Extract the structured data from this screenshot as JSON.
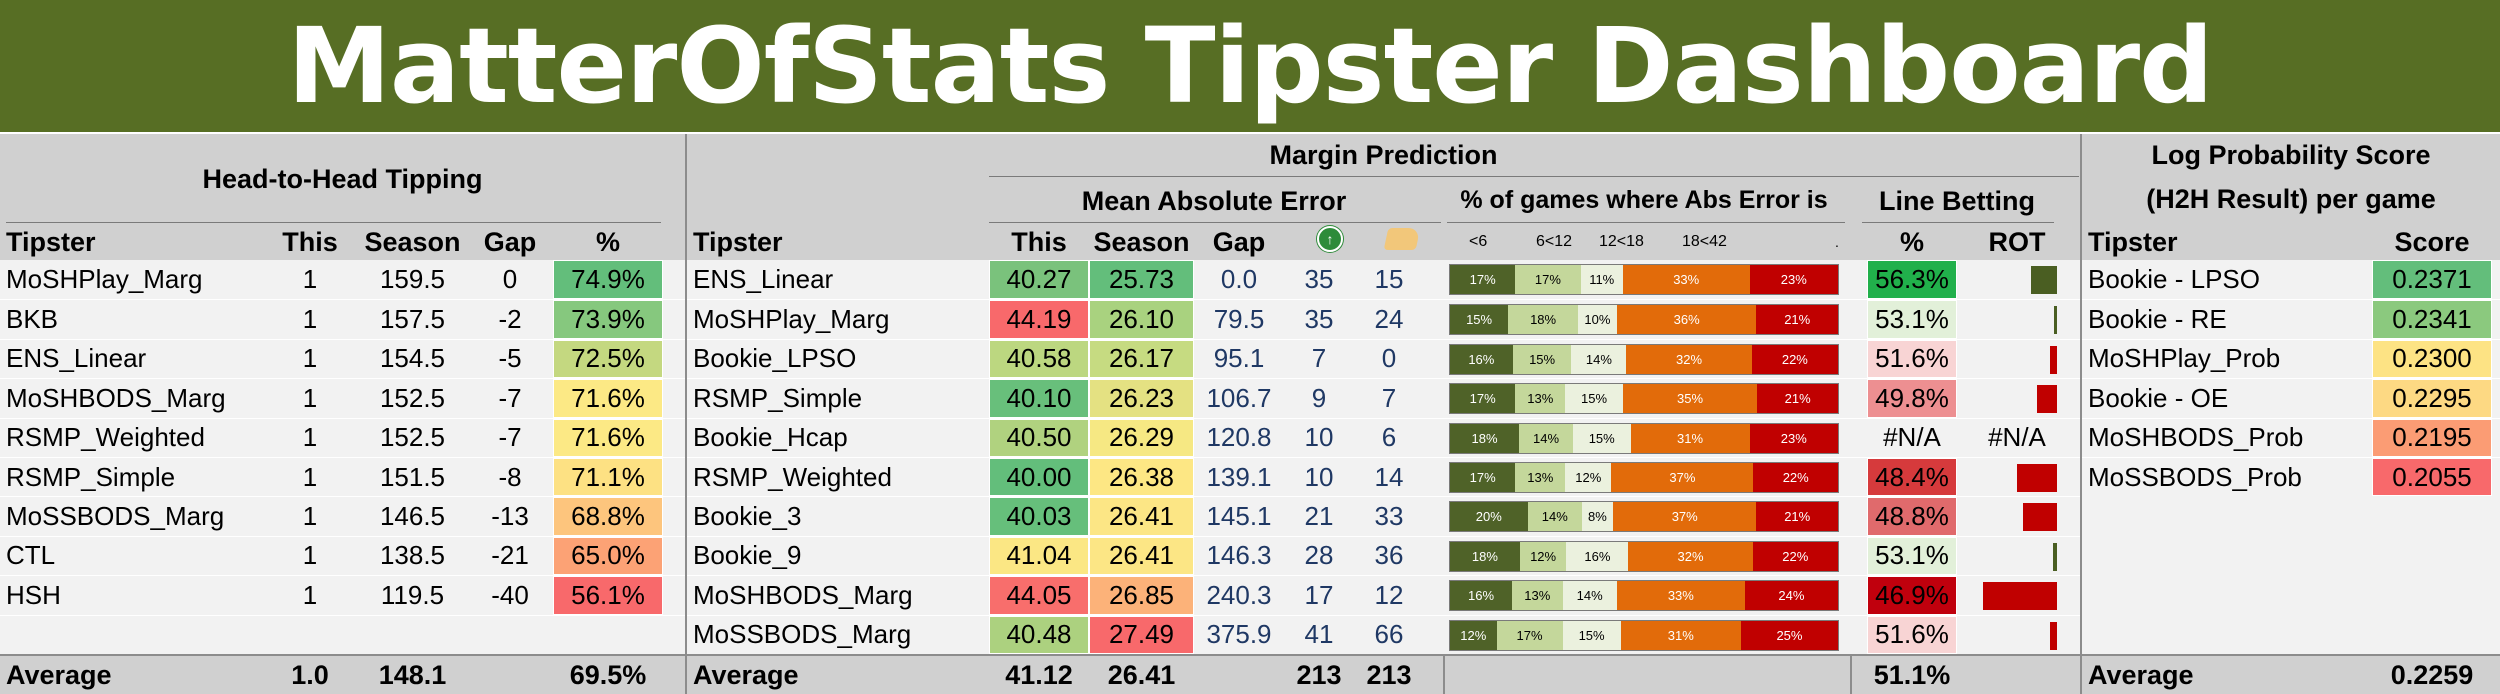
{
  "title": "MatterOfStats Tipster Dashboard",
  "h2h": {
    "heading": "Head-to-Head Tipping",
    "columns": [
      "Tipster",
      "This",
      "Season",
      "Gap",
      "%"
    ],
    "rows": [
      {
        "tipster": "MoSHPlay_Marg",
        "this": "1",
        "season": "159.5",
        "gap": "0",
        "pct": "74.9%",
        "color": "#63be7b"
      },
      {
        "tipster": "BKB",
        "this": "1",
        "season": "157.5",
        "gap": "-2",
        "pct": "73.9%",
        "color": "#86c87e"
      },
      {
        "tipster": "ENS_Linear",
        "this": "1",
        "season": "154.5",
        "gap": "-5",
        "pct": "72.5%",
        "color": "#c4d880"
      },
      {
        "tipster": "MoSHBODS_Marg",
        "this": "1",
        "season": "152.5",
        "gap": "-7",
        "pct": "71.6%",
        "color": "#fce985"
      },
      {
        "tipster": "RSMP_Weighted",
        "this": "1",
        "season": "152.5",
        "gap": "-7",
        "pct": "71.6%",
        "color": "#fce985"
      },
      {
        "tipster": "RSMP_Simple",
        "this": "1",
        "season": "151.5",
        "gap": "-8",
        "pct": "71.1%",
        "color": "#fde183"
      },
      {
        "tipster": "MoSSBODS_Marg",
        "this": "1",
        "season": "146.5",
        "gap": "-13",
        "pct": "68.8%",
        "color": "#fdc57d"
      },
      {
        "tipster": "CTL",
        "this": "1",
        "season": "138.5",
        "gap": "-21",
        "pct": "65.0%",
        "color": "#fca275"
      },
      {
        "tipster": "HSH",
        "this": "1",
        "season": "119.5",
        "gap": "-40",
        "pct": "56.1%",
        "color": "#f8696b"
      }
    ],
    "average": {
      "label": "Average",
      "this": "1.0",
      "season": "148.1",
      "pct": "69.5%"
    }
  },
  "margin": {
    "heading": "Margin Prediction",
    "mae_heading": "Mean Absolute Error",
    "pct_heading": "% of games where Abs Error is",
    "line_heading": "Line Betting",
    "columns": [
      "Tipster",
      "This",
      "Season",
      "Gap"
    ],
    "bucket_labels": [
      "<6",
      "6<12",
      "12<18",
      "18<42",
      "."
    ],
    "line_columns": [
      "%",
      "ROT"
    ],
    "icons": {
      "col5": "green-circle-icon",
      "col6": "foam-finger-icon"
    },
    "segment_colors": [
      "#4f6228",
      "#c4d79b",
      "#ebf1de",
      "#e26b0a",
      "#c00000"
    ],
    "segment_text_colors": [
      "#ffffff",
      "#000000",
      "#000000",
      "#ffffff",
      "#ffffff"
    ],
    "rows": [
      {
        "tipster": "ENS_Linear",
        "this": "40.27",
        "this_color": "#7ac27c",
        "season": "25.73",
        "season_color": "#63be7b",
        "gap": "0.0",
        "n1": "35",
        "n2": "15",
        "buckets": [
          "17%",
          "17%",
          "11%",
          "33%",
          "23%"
        ],
        "line_pct": "56.3%",
        "line_color": "#21b04b",
        "rot": 0.32
      },
      {
        "tipster": "MoSHPlay_Marg",
        "this": "44.19",
        "this_color": "#f8696b",
        "season": "26.10",
        "season_color": "#a9d27f",
        "gap": "79.5",
        "n1": "35",
        "n2": "24",
        "buckets": [
          "15%",
          "18%",
          "10%",
          "36%",
          "21%"
        ],
        "line_pct": "53.1%",
        "line_color": "#e2f0d9",
        "rot": 0.02
      },
      {
        "tipster": "Bookie_LPSO",
        "this": "40.58",
        "this_color": "#bcd780",
        "season": "26.17",
        "season_color": "#c6db81",
        "gap": "95.1",
        "n1": "7",
        "n2": "0",
        "buckets": [
          "16%",
          "15%",
          "14%",
          "32%",
          "22%"
        ],
        "line_pct": "51.6%",
        "line_color": "#f8d4d4",
        "rot": -0.09
      },
      {
        "tipster": "RSMP_Simple",
        "this": "40.10",
        "this_color": "#68bf7b",
        "season": "26.23",
        "season_color": "#e4e182",
        "gap": "106.7",
        "n1": "9",
        "n2": "7",
        "buckets": [
          "17%",
          "13%",
          "15%",
          "35%",
          "21%"
        ],
        "line_pct": "49.8%",
        "line_color": "#ed8f91",
        "rot": -0.25
      },
      {
        "tipster": "Bookie_Hcap",
        "this": "40.50",
        "this_color": "#b0d27f",
        "season": "26.29",
        "season_color": "#f6e883",
        "gap": "120.8",
        "n1": "10",
        "n2": "6",
        "buckets": [
          "18%",
          "14%",
          "15%",
          "31%",
          "23%"
        ],
        "line_pct": "#N/A",
        "line_color": "",
        "rot": null,
        "rot_text": "#N/A"
      },
      {
        "tipster": "RSMP_Weighted",
        "this": "40.00",
        "this_color": "#63be7b",
        "season": "26.38",
        "season_color": "#fde784",
        "gap": "139.1",
        "n1": "10",
        "n2": "14",
        "buckets": [
          "17%",
          "13%",
          "12%",
          "37%",
          "22%"
        ],
        "line_pct": "48.4%",
        "line_color": "#d63a3c",
        "rot": -0.5
      },
      {
        "tipster": "Bookie_3",
        "this": "40.03",
        "this_color": "#66bf7b",
        "season": "26.41",
        "season_color": "#fce685",
        "gap": "145.1",
        "n1": "21",
        "n2": "33",
        "buckets": [
          "20%",
          "14%",
          "8%",
          "37%",
          "21%"
        ],
        "line_pct": "48.8%",
        "line_color": "#e06a6c",
        "rot": -0.42
      },
      {
        "tipster": "Bookie_9",
        "this": "41.04",
        "this_color": "#fbe784",
        "season": "26.41",
        "season_color": "#fce685",
        "gap": "146.3",
        "n1": "28",
        "n2": "36",
        "buckets": [
          "18%",
          "12%",
          "16%",
          "32%",
          "22%"
        ],
        "line_pct": "53.1%",
        "line_color": "#e2f0d9",
        "rot": 0.05
      },
      {
        "tipster": "MoSHBODS_Marg",
        "this": "44.05",
        "this_color": "#f86e6c",
        "season": "26.85",
        "season_color": "#fcb279",
        "gap": "240.3",
        "n1": "17",
        "n2": "12",
        "buckets": [
          "16%",
          "13%",
          "14%",
          "33%",
          "24%"
        ],
        "line_pct": "46.9%",
        "line_color": "#c0000d",
        "rot": -0.92
      },
      {
        "tipster": "MoSSBODS_Marg",
        "this": "40.48",
        "this_color": "#acd17f",
        "season": "27.49",
        "season_color": "#f8696b",
        "gap": "375.9",
        "n1": "41",
        "n2": "66",
        "buckets": [
          "12%",
          "17%",
          "15%",
          "31%",
          "25%"
        ],
        "line_pct": "51.6%",
        "line_color": "#f8d4d4",
        "rot": -0.09
      }
    ],
    "average": {
      "label": "Average",
      "this": "41.12",
      "season": "26.41",
      "n1": "213",
      "n2": "213",
      "line_pct": "51.1%"
    }
  },
  "logprob": {
    "heading_1": "Log Probability Score",
    "heading_2": "(H2H Result) per game",
    "columns": [
      "Tipster",
      "Score"
    ],
    "rows": [
      {
        "tipster": "Bookie - LPSO",
        "score": "0.2371",
        "color": "#63be7b"
      },
      {
        "tipster": "Bookie - RE",
        "score": "0.2341",
        "color": "#8bc97e"
      },
      {
        "tipster": "MoSHPlay_Prob",
        "score": "0.2300",
        "color": "#fde384"
      },
      {
        "tipster": "Bookie - OE",
        "score": "0.2295",
        "color": "#fdd983"
      },
      {
        "tipster": "MoSHBODS_Prob",
        "score": "0.2195",
        "color": "#fb9c74"
      },
      {
        "tipster": "MoSSBODS_Prob",
        "score": "0.2055",
        "color": "#f8696b"
      }
    ],
    "average": {
      "label": "Average",
      "score": "0.2259"
    }
  }
}
